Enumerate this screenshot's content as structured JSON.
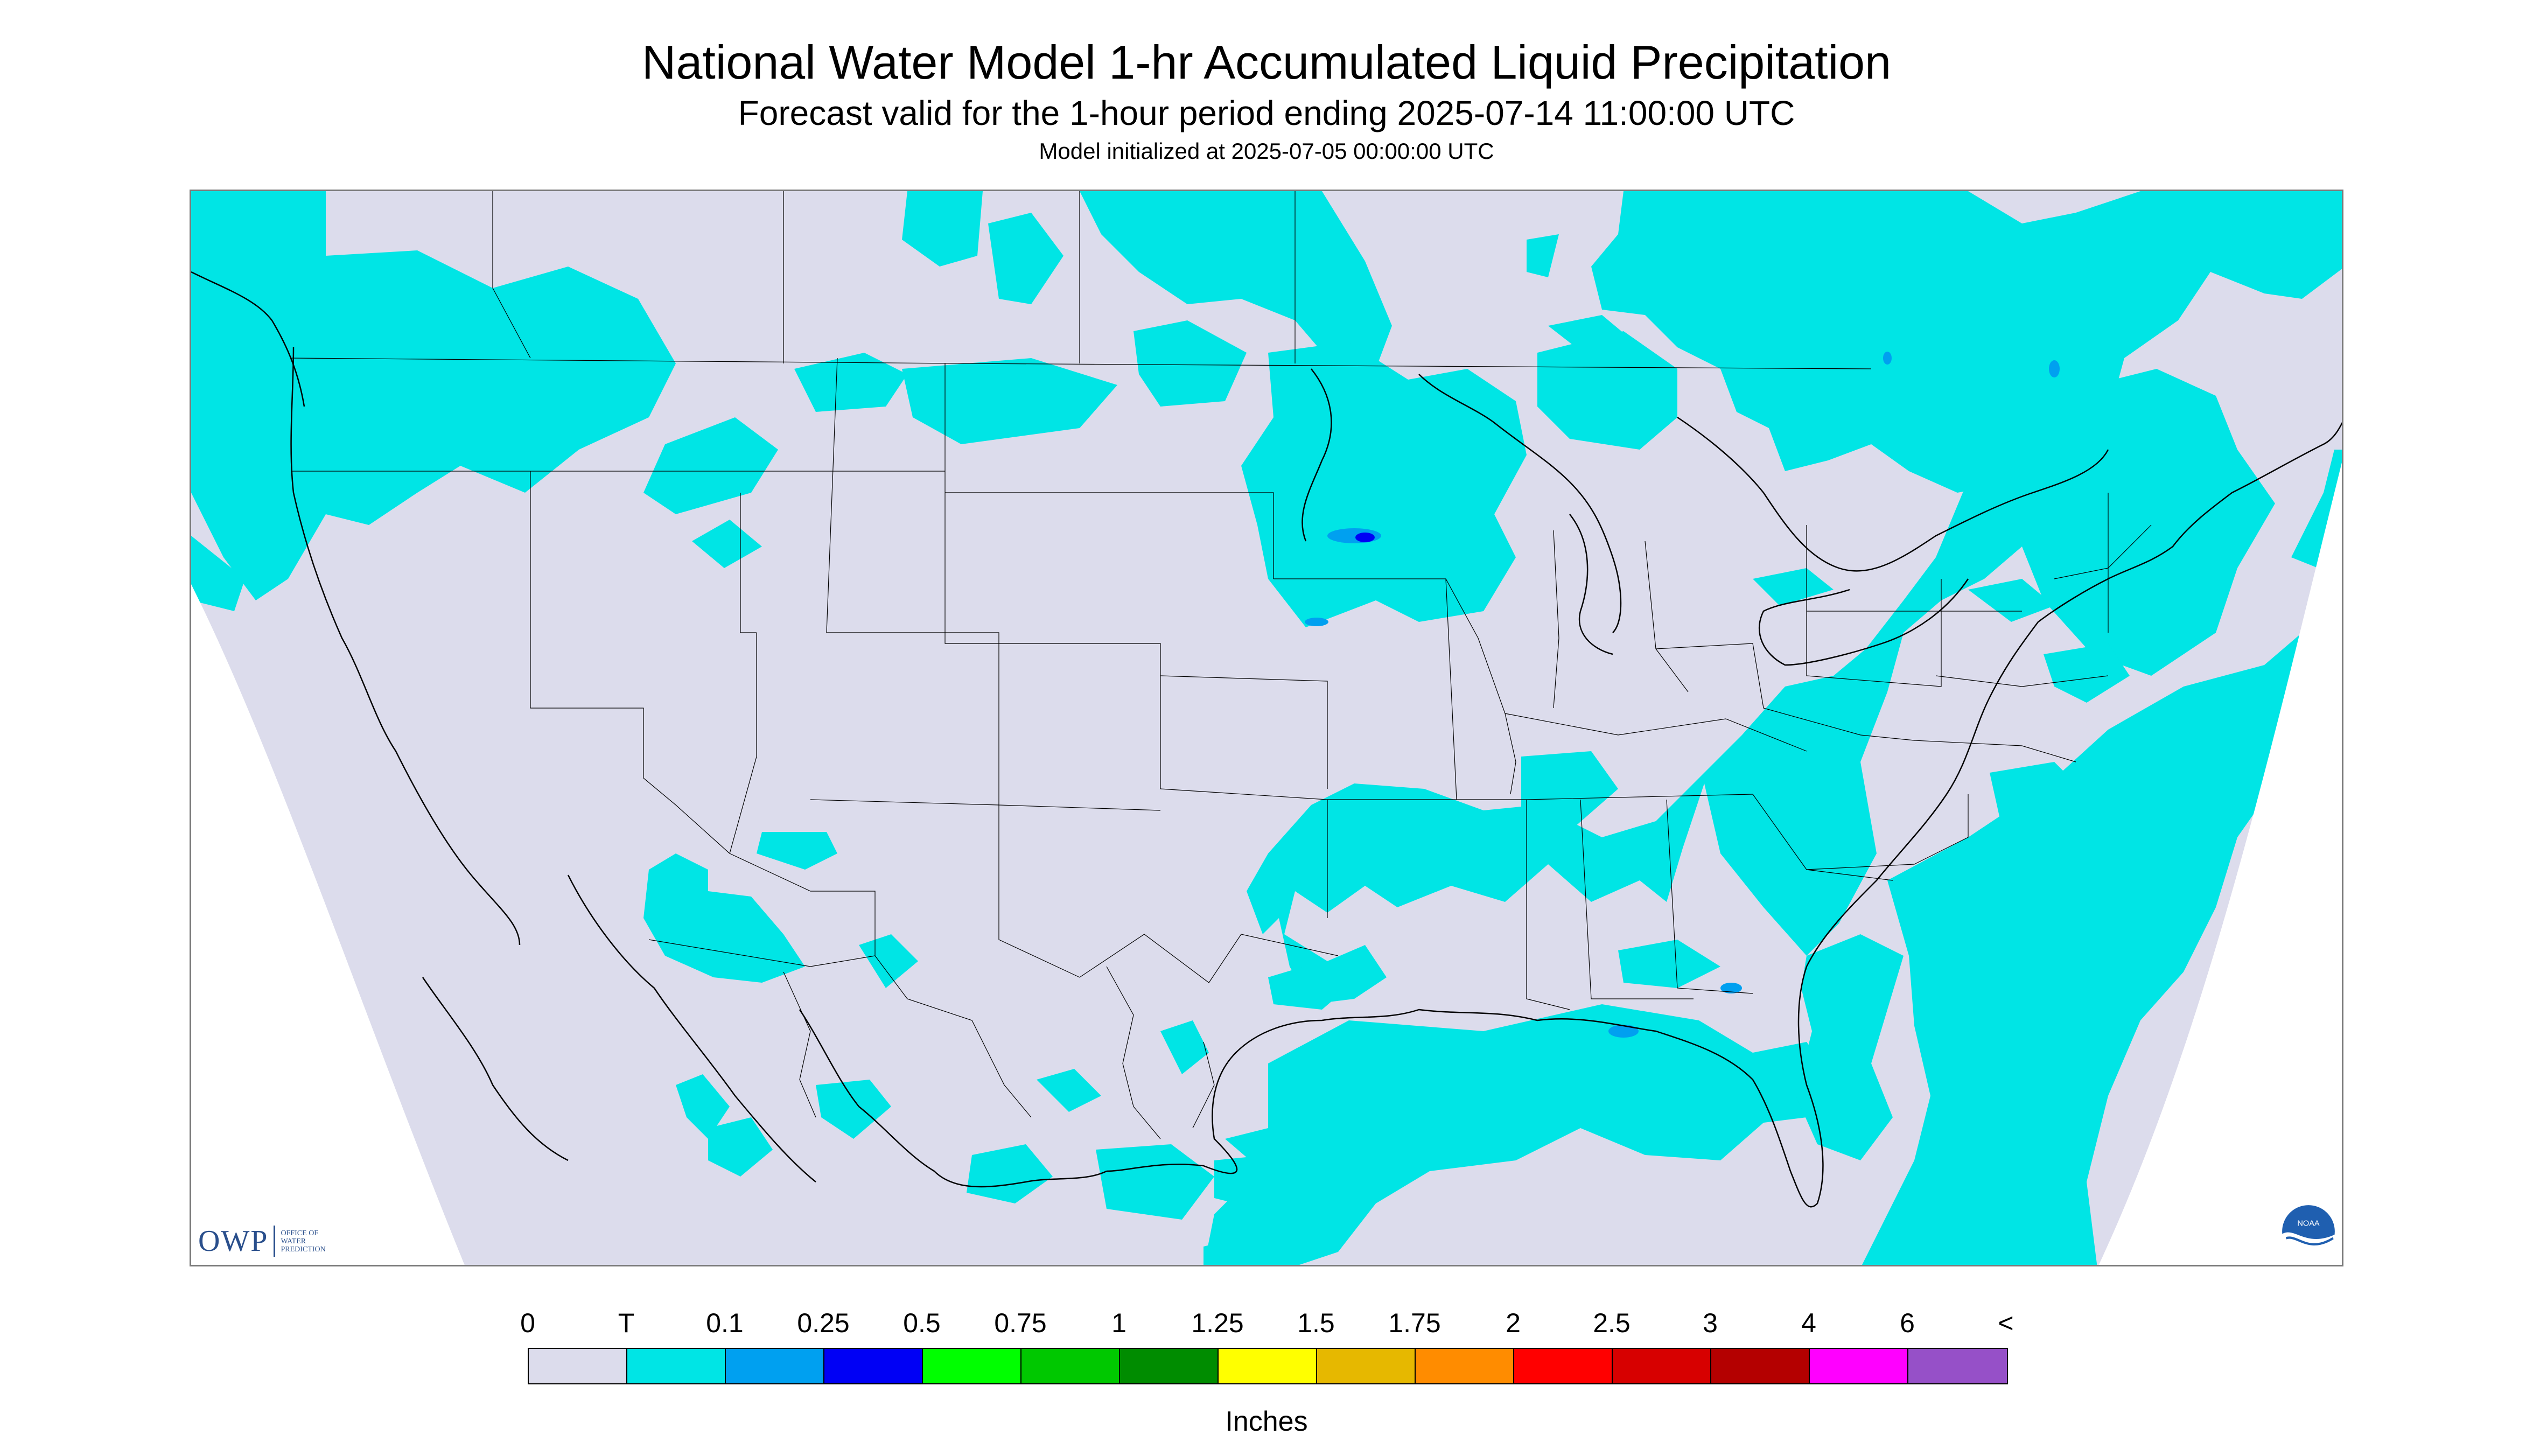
{
  "header": {
    "title": "National Water Model 1-hr Accumulated Liquid Precipitation",
    "subtitle": "Forecast valid for the 1-hour period ending 2025-07-14 11:00:00 UTC",
    "init": "Model initialized at 2025-07-05 00:00:00 UTC"
  },
  "logos": {
    "owp_text": "OWP",
    "owp_sub": [
      "OFFICE OF",
      "WATER",
      "PREDICTION"
    ],
    "noaa_text": "NOAA"
  },
  "colors": {
    "no_data_background": "#dcdcec",
    "out_of_domain": "#ffffff",
    "trace": "#00e5e5",
    "boundary": "#000000"
  },
  "legend": {
    "labels": [
      "0",
      "T",
      "0.1",
      "0.25",
      "0.5",
      "0.75",
      "1",
      "1.25",
      "1.5",
      "1.75",
      "2",
      "2.5",
      "3",
      "4",
      "6",
      "<"
    ],
    "colors": [
      "#dcdcec",
      "#00e5e5",
      "#00a0f0",
      "#0000f5",
      "#00ff00",
      "#00c800",
      "#008c00",
      "#ffff00",
      "#e6b800",
      "#ff8c00",
      "#ff0000",
      "#d70000",
      "#b40000",
      "#ff00ff",
      "#9650c8"
    ],
    "units": "Inches"
  }
}
